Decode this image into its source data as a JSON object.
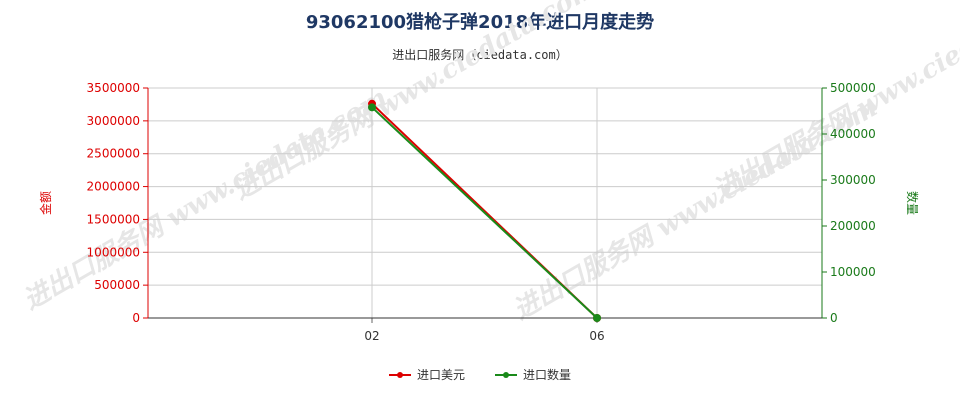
{
  "title": "93062100猎枪子弹2018年进口月度走势",
  "subtitle": "进出口服务网（ciedata.com）",
  "watermark": "进出口服务网 www.ciedata.com",
  "colors": {
    "left_axis": "#dd0000",
    "right_axis": "#1a7a1a",
    "grid": "#cccccc"
  },
  "chart_data": {
    "type": "line",
    "title": "93062100猎枪子弹2018年进口月度走势",
    "categories": [
      "02",
      "06"
    ],
    "y_left": {
      "label": "金额",
      "min": 0,
      "max": 3500000,
      "ticks": [
        "0",
        "500000",
        "1000000",
        "1500000",
        "2000000",
        "2500000",
        "3000000",
        "3500000"
      ]
    },
    "y_right": {
      "label": "数量",
      "min": 0,
      "max": 500000,
      "ticks": [
        "0",
        "100000",
        "200000",
        "300000",
        "400000",
        "500000"
      ]
    },
    "series": [
      {
        "name": "进口美元",
        "axis": "left",
        "color": "#dd0000",
        "values": [
          3260000,
          0
        ]
      },
      {
        "name": "进口数量",
        "axis": "right",
        "color": "#1a8a1a",
        "values": [
          458000,
          0
        ]
      }
    ],
    "grid": true,
    "legend": "bottom-center"
  }
}
